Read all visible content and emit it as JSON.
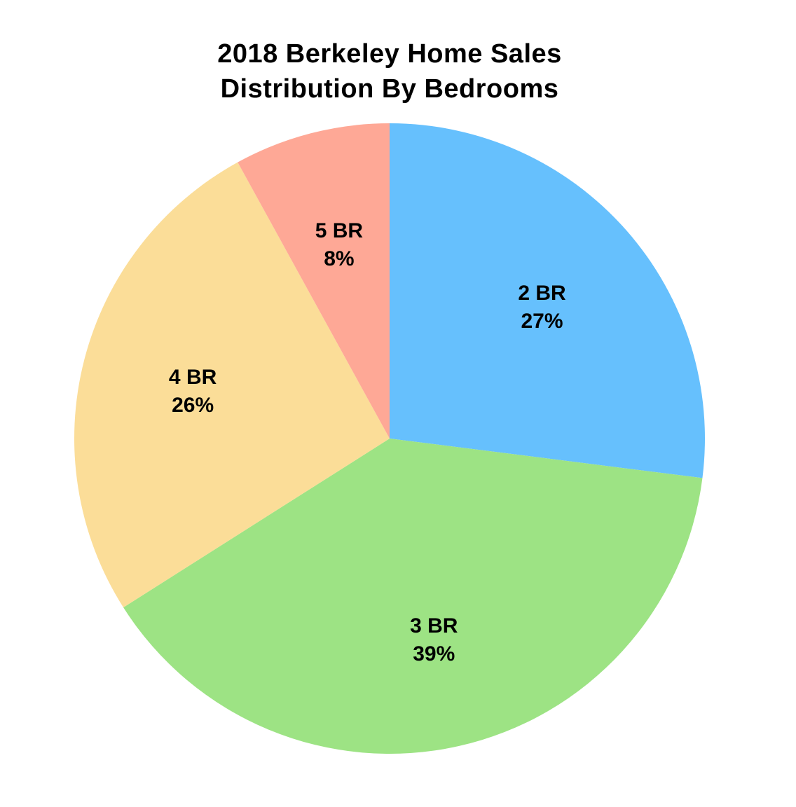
{
  "chart_data": {
    "type": "pie",
    "title_lines": [
      "2018 Berkeley Home Sales",
      "Distribution By Bedrooms"
    ],
    "slices": [
      {
        "label": "2 BR",
        "value_label": "27%",
        "value": 27,
        "color": "#66C0FD"
      },
      {
        "label": "3 BR",
        "value_label": "39%",
        "value": 39,
        "color": "#9DE384"
      },
      {
        "label": "4 BR",
        "value_label": "26%",
        "value": 26,
        "color": "#FBDD98"
      },
      {
        "label": "5 BR",
        "value_label": "8%",
        "value": 8,
        "color": "#FEA896"
      }
    ],
    "start_angle": "12 o'clock",
    "direction": "clockwise",
    "legend": "none",
    "labels": "inside"
  }
}
